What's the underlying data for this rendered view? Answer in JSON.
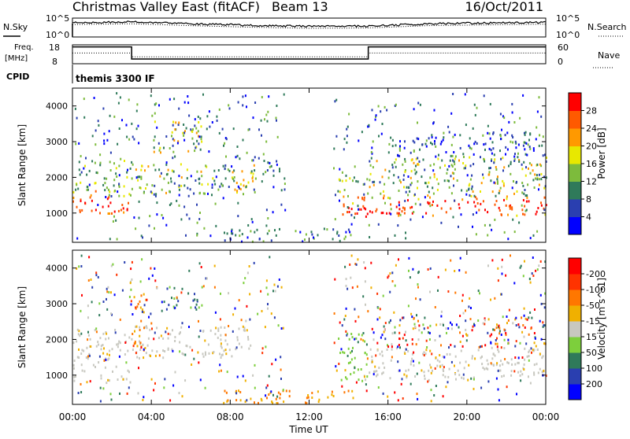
{
  "header": {
    "station": "Christmas Valley East (fitACF)",
    "beam": "Beam 13",
    "date": "16/Oct/2011"
  },
  "noise_panel": {
    "left_label": "N.Sky",
    "left_top_tick": "10^5",
    "left_bottom_tick": "10^0",
    "right_label": "N.Search",
    "right_top_tick": "10^5",
    "right_bottom_tick": "10^0"
  },
  "freq_panel": {
    "left_label_line1": "Freq.",
    "left_label_line2": "[MHz]",
    "left_top_tick": "18",
    "left_bottom_tick": "8",
    "right_label": "Nave",
    "right_top_tick": "60",
    "right_bottom_tick": "0"
  },
  "cpid_panel": {
    "label": "CPID",
    "value": "themis 3300 IF"
  },
  "colors": {
    "power_scale": [
      "#0000ff",
      "#2a3fb0",
      "#2f7a5a",
      "#7dbb3c",
      "#e8e800",
      "#ff9900",
      "#ff5a00",
      "#ff0000"
    ],
    "velocity_scale": [
      "#0000ff",
      "#2a3fb0",
      "#2f7a5a",
      "#7dcf3c",
      "#c8c8c0",
      "#f0b000",
      "#ff7700",
      "#ff3300",
      "#ff0000"
    ],
    "ground_scatter": "#c8c8c0"
  },
  "chart_data": [
    {
      "type": "heatmap",
      "panel": "power",
      "xlabel": "",
      "ylabel": "Slant Range [km]",
      "x_range_hours": [
        0,
        24
      ],
      "ylim": [
        180,
        4500
      ],
      "y_ticks": [
        "1000",
        "2000",
        "3000",
        "4000"
      ],
      "colorbar": {
        "title": "Power [dB]",
        "ticks": [
          "4",
          "8",
          "12",
          "16",
          "20",
          "24",
          "28"
        ],
        "range": [
          0,
          30
        ]
      },
      "bands": [
        {
          "t_start": 0.0,
          "t_end": 2.9,
          "range_start_km": 1000,
          "range_end_km": 2500,
          "level": "strong"
        },
        {
          "t_start": 2.8,
          "t_end": 9.2,
          "range_start_km": 1500,
          "range_end_km": 2400,
          "level": "medium"
        },
        {
          "t_start": 4.0,
          "t_end": 6.6,
          "range_start_km": 2700,
          "range_end_km": 3600,
          "level": "medium"
        },
        {
          "t_start": 9.5,
          "t_end": 10.6,
          "range_start_km": 2000,
          "range_end_km": 2600,
          "level": "weak"
        },
        {
          "t_start": 7.5,
          "t_end": 14.2,
          "range_start_km": 200,
          "range_end_km": 600,
          "level": "weak"
        },
        {
          "t_start": 13.4,
          "t_end": 15.0,
          "range_start_km": 850,
          "range_end_km": 2100,
          "level": "strong"
        },
        {
          "t_start": 14.7,
          "t_end": 24.0,
          "range_start_km": 950,
          "range_end_km": 1500,
          "level": "strong"
        },
        {
          "t_start": 15.0,
          "t_end": 24.0,
          "range_start_km": 1500,
          "range_end_km": 2600,
          "level": "medium"
        },
        {
          "t_start": 16.0,
          "t_end": 24.0,
          "range_start_km": 2600,
          "range_end_km": 3300,
          "level": "weak"
        }
      ]
    },
    {
      "type": "heatmap",
      "panel": "velocity",
      "xlabel": "Time UT",
      "ylabel": "Slant Range [km]",
      "x_range_hours": [
        0,
        24
      ],
      "x_ticks": [
        "00:00",
        "04:00",
        "08:00",
        "12:00",
        "16:00",
        "20:00",
        "00:00"
      ],
      "ylim": [
        180,
        4500
      ],
      "y_ticks": [
        "1000",
        "2000",
        "3000",
        "4000"
      ],
      "colorbar": {
        "title": "Velocity [m s^-1]",
        "ticks": [
          "200",
          "100",
          "50",
          "15",
          "-15",
          "-50",
          "-100",
          "-200"
        ],
        "range": [
          -250,
          250
        ]
      },
      "bands": [
        {
          "t_start": 0.0,
          "t_end": 2.9,
          "range_start_km": 800,
          "range_end_km": 2300,
          "level": "ground"
        },
        {
          "t_start": 2.8,
          "t_end": 9.0,
          "range_start_km": 1500,
          "range_end_km": 2400,
          "level": "ground"
        },
        {
          "t_start": 3.0,
          "t_end": 3.8,
          "range_start_km": 1600,
          "range_end_km": 3300,
          "level": "orange"
        },
        {
          "t_start": 3.5,
          "t_end": 4.0,
          "range_start_km": 2600,
          "range_end_km": 3000,
          "level": "blue"
        },
        {
          "t_start": 4.5,
          "t_end": 6.6,
          "range_start_km": 2800,
          "range_end_km": 3500,
          "level": "greens"
        },
        {
          "t_start": 13.4,
          "t_end": 15.0,
          "range_start_km": 850,
          "range_end_km": 2200,
          "level": "green"
        },
        {
          "t_start": 14.7,
          "t_end": 24.0,
          "range_start_km": 850,
          "range_end_km": 1800,
          "level": "ground"
        },
        {
          "t_start": 15.0,
          "t_end": 24.0,
          "range_start_km": 1800,
          "range_end_km": 2700,
          "level": "mixed"
        },
        {
          "t_start": 7.5,
          "t_end": 14.2,
          "range_start_km": 200,
          "range_end_km": 600,
          "level": "orange"
        }
      ]
    },
    {
      "type": "line",
      "panel": "noise",
      "series_note": "N.Sky solid, N.Search dotted",
      "approx_log_level": {
        "t": [
          0,
          3,
          6,
          9,
          12,
          15,
          18,
          21,
          24
        ],
        "values": [
          3.8,
          4.0,
          3.5,
          3.1,
          2.8,
          2.9,
          3.5,
          3.7,
          3.9
        ]
      }
    },
    {
      "type": "line",
      "panel": "frequency",
      "series_note": "Freq solid, Nave dotted",
      "freq_mhz": {
        "t": [
          0,
          3.0,
          3.0,
          15.0,
          15.0,
          24.0
        ],
        "values": [
          16.9,
          16.9,
          10.5,
          10.5,
          16.9,
          16.9
        ]
      },
      "nave": {
        "t": [
          0,
          3.0,
          3.0,
          15.0,
          15.0,
          24.0
        ],
        "values": [
          34,
          34,
          22,
          22,
          34,
          34
        ]
      }
    }
  ]
}
